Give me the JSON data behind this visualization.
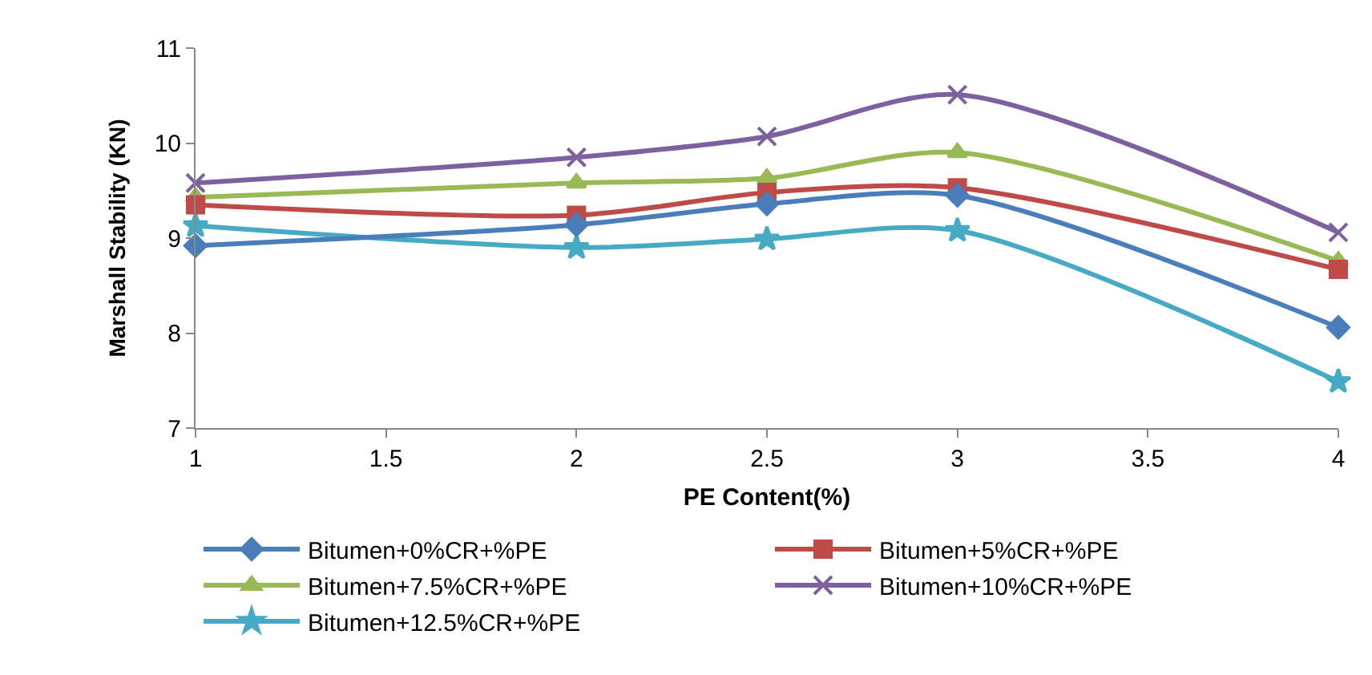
{
  "chart_data": {
    "type": "line",
    "xlabel": "PE Content(%)",
    "ylabel": "Marshall Stability (KN)",
    "x": [
      1,
      2,
      2.5,
      3,
      4
    ],
    "xlim": [
      1,
      4
    ],
    "xticks": [
      1,
      1.5,
      2,
      2.5,
      3,
      3.5,
      4
    ],
    "ylim": [
      7,
      11
    ],
    "yticks": [
      7,
      8,
      9,
      10,
      11
    ],
    "grid": false,
    "legend": "bottom",
    "line_style": "solid",
    "series": [
      {
        "name": "Bitumen+0%CR+%PE",
        "color": "#4a7ebb",
        "marker": "diamond",
        "values": [
          8.92,
          9.14,
          9.36,
          9.45,
          8.06
        ]
      },
      {
        "name": "Bitumen+5%CR+%PE",
        "color": "#be4b48",
        "marker": "square",
        "values": [
          9.35,
          9.24,
          9.48,
          9.53,
          8.67
        ]
      },
      {
        "name": "Bitumen+7.5%CR+%PE",
        "color": "#98b954",
        "marker": "triangle",
        "values": [
          9.43,
          9.58,
          9.63,
          9.9,
          8.76
        ]
      },
      {
        "name": "Bitumen+10%CR+%PE",
        "color": "#7d60a0",
        "marker": "cross",
        "values": [
          9.58,
          9.85,
          10.07,
          10.51,
          9.06
        ]
      },
      {
        "name": "Bitumen+12.5%CR+%PE",
        "color": "#46aac5",
        "marker": "star",
        "values": [
          9.13,
          8.9,
          8.99,
          9.08,
          7.49
        ]
      }
    ]
  }
}
